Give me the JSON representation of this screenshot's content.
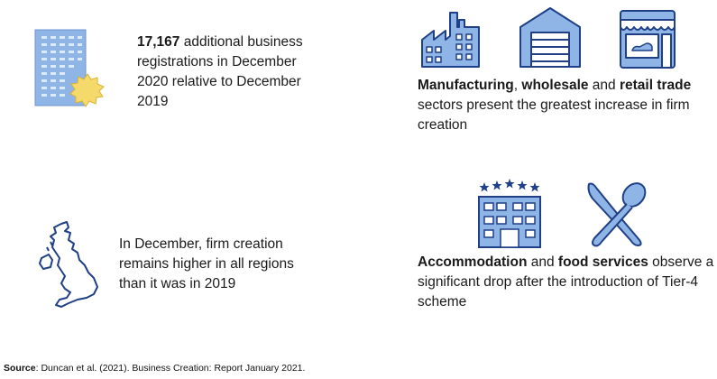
{
  "colors": {
    "icon_fill": "#8fb4e6",
    "icon_stroke": "#1f3f86",
    "star": "#f6d96b",
    "accent_dark": "#243f7e"
  },
  "facts": {
    "registrations": {
      "count": "17,167",
      "rest": " additional business registrations in December 2020 relative to December 2019",
      "icon": "office-building-badge-icon"
    },
    "regions": {
      "text": "In December, firm creation remains higher in all regions than it was in 2019",
      "icon": "uk-map-icon"
    },
    "sectors": {
      "manufacturing": "Manufacturing",
      "sep1": ", ",
      "wholesale": "wholesale",
      "sep2": " and ",
      "retail": "retail trade",
      "rest": " sectors present the greatest increase in firm creation",
      "icons": [
        "factory-icon",
        "warehouse-icon",
        "shop-icon"
      ]
    },
    "hospitality": {
      "accommodation": "Accommodation",
      "sep": " and ",
      "food": "food services",
      "rest": " observe a significant drop after the introduction of Tier-4 scheme",
      "icons": [
        "hotel-icon",
        "knife-spoon-icon"
      ]
    }
  },
  "source": {
    "label": "Source",
    "text": ": Duncan et al. (2021). Business Creation: Report January 2021."
  }
}
